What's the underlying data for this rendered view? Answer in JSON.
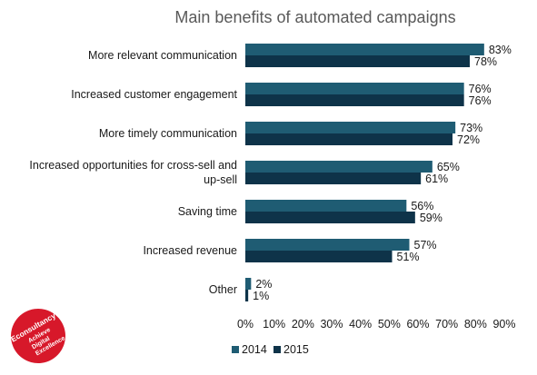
{
  "colors": {
    "s2014": "#1f5c73",
    "s2015": "#0e3349",
    "logo": "#d7182a"
  },
  "logo": {
    "icon": "econsultancy-logo",
    "brand": "Econsultancy",
    "tagline": [
      "Achieve",
      "Digital",
      "Excellence"
    ]
  },
  "chart_data": {
    "type": "bar",
    "orientation": "horizontal",
    "title": "Main benefits of automated campaigns",
    "categories": [
      [
        "More relevant communication"
      ],
      [
        "Increased customer engagement"
      ],
      [
        "More timely communication"
      ],
      [
        "Increased opportunities for cross-sell and",
        "up-sell"
      ],
      [
        "Saving time"
      ],
      [
        "Increased revenue"
      ],
      [
        "Other"
      ]
    ],
    "series": [
      {
        "name": "2014",
        "values": [
          83,
          76,
          73,
          65,
          56,
          57,
          2
        ],
        "labels": [
          "83%",
          "76%",
          "73%",
          "65%",
          "56%",
          "57%",
          "2%"
        ]
      },
      {
        "name": "2015",
        "values": [
          78,
          76,
          72,
          61,
          59,
          51,
          1
        ],
        "labels": [
          "78%",
          "76%",
          "72%",
          "61%",
          "59%",
          "51%",
          "1%"
        ]
      }
    ],
    "xlim": [
      0,
      90
    ],
    "xticks": [
      "0%",
      "10%",
      "20%",
      "30%",
      "40%",
      "50%",
      "60%",
      "70%",
      "80%",
      "90%"
    ],
    "legend_position": "bottom-left",
    "grid": false
  }
}
